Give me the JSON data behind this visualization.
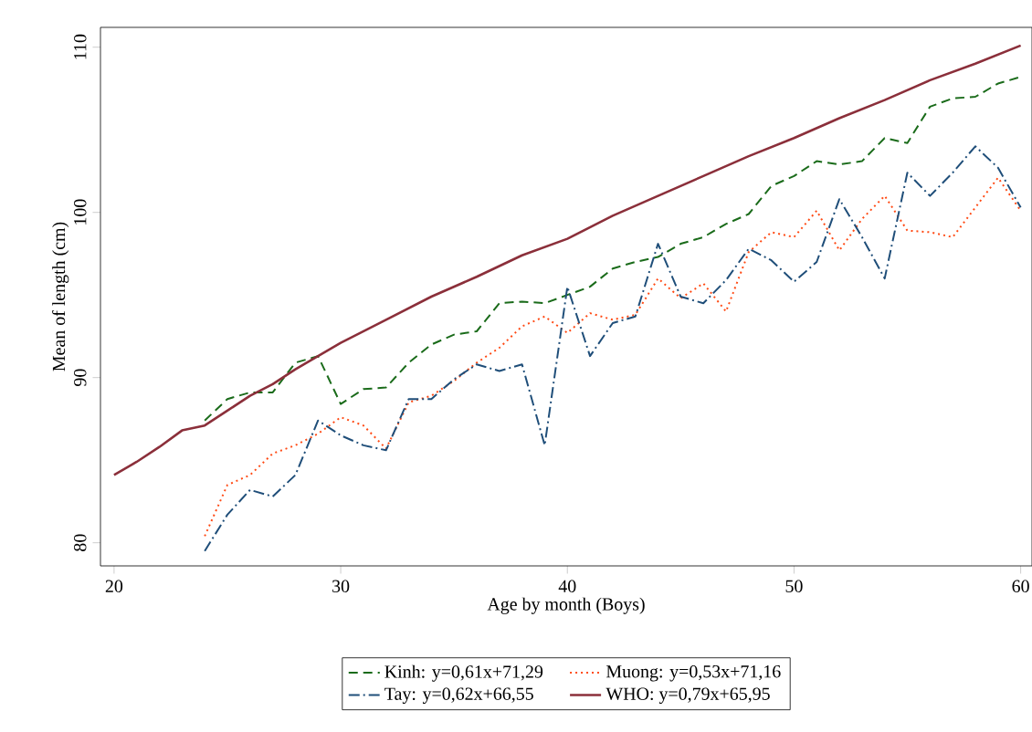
{
  "chart_data": {
    "type": "line",
    "xlabel": "Age by month (Boys)",
    "ylabel": "Mean of length (cm)",
    "xlim": [
      19.4,
      60.5
    ],
    "ylim": [
      78.6,
      111.2
    ],
    "xticks": [
      20,
      30,
      40,
      50,
      60
    ],
    "yticks": [
      80,
      90,
      100,
      110
    ],
    "grid": false,
    "legend": "bottom",
    "marker": "none",
    "series": [
      {
        "name": "Kinh: y=0,61x+71,29",
        "color": "#1a6b1a",
        "line_style": "dashed",
        "x": [
          24,
          25,
          26,
          27,
          28,
          29,
          30,
          31,
          32,
          33,
          34,
          35,
          36,
          37,
          38,
          39,
          40,
          41,
          42,
          43,
          44,
          45,
          46,
          47,
          48,
          49,
          50,
          51,
          52,
          53,
          54,
          55,
          56,
          57,
          58,
          59,
          60
        ],
        "values": [
          87.4,
          88.7,
          89.1,
          89.1,
          90.9,
          91.3,
          88.4,
          89.3,
          89.4,
          90.9,
          92.0,
          92.6,
          92.8,
          94.5,
          94.6,
          94.5,
          95.0,
          95.5,
          96.6,
          97.0,
          97.3,
          98.1,
          98.5,
          99.3,
          99.9,
          101.6,
          102.2,
          103.1,
          102.9,
          103.1,
          104.5,
          104.2,
          106.4,
          106.9,
          107.0,
          107.8,
          108.2
        ]
      },
      {
        "name": "Muong: y=0,53x+71,16",
        "color": "#ff4a14",
        "line_style": "dotted",
        "x": [
          24,
          25,
          26,
          27,
          28,
          29,
          30,
          31,
          32,
          33,
          34,
          35,
          36,
          37,
          38,
          39,
          40,
          41,
          42,
          43,
          44,
          45,
          46,
          47,
          48,
          49,
          50,
          51,
          52,
          53,
          54,
          55,
          56,
          57,
          58,
          59,
          60
        ],
        "values": [
          80.4,
          83.5,
          84.1,
          85.4,
          85.9,
          86.6,
          87.6,
          87.1,
          85.7,
          88.5,
          88.9,
          89.8,
          90.9,
          91.8,
          93.1,
          93.7,
          92.7,
          93.9,
          93.5,
          93.8,
          96.0,
          94.8,
          95.7,
          94.0,
          97.6,
          98.8,
          98.5,
          100.1,
          97.7,
          99.6,
          101.0,
          98.9,
          98.8,
          98.5,
          100.3,
          102.1,
          100.1
        ]
      },
      {
        "name": "Tay: y=0,62x+66,55",
        "color": "#1f4e79",
        "line_style": "dashdot",
        "x": [
          24,
          25,
          26,
          27,
          28,
          29,
          30,
          31,
          32,
          33,
          34,
          35,
          36,
          37,
          38,
          39,
          40,
          41,
          42,
          43,
          44,
          45,
          46,
          47,
          48,
          49,
          50,
          51,
          52,
          53,
          54,
          55,
          56,
          57,
          58,
          59,
          60
        ],
        "values": [
          79.5,
          81.7,
          83.2,
          82.8,
          84.1,
          87.4,
          86.5,
          85.9,
          85.6,
          88.7,
          88.7,
          89.9,
          90.8,
          90.4,
          90.8,
          85.9,
          95.5,
          91.3,
          93.3,
          93.7,
          98.1,
          94.9,
          94.5,
          95.9,
          97.8,
          97.1,
          95.8,
          97.0,
          100.8,
          98.5,
          96.0,
          102.4,
          101.0,
          102.4,
          104.0,
          102.7,
          100.3
        ]
      },
      {
        "name": "WHO: y=0,79x+65,95",
        "color": "#8b2f3a",
        "line_style": "solid",
        "x": [
          20,
          21,
          22,
          23,
          24,
          25,
          26,
          27,
          28,
          29,
          30,
          32,
          34,
          36,
          38,
          40,
          42,
          44,
          46,
          48,
          50,
          52,
          54,
          56,
          58,
          60
        ],
        "values": [
          84.1,
          84.9,
          85.8,
          86.8,
          87.1,
          88.0,
          88.9,
          89.6,
          90.5,
          91.3,
          92.1,
          93.5,
          94.9,
          96.1,
          97.4,
          98.4,
          99.8,
          101.0,
          102.2,
          103.4,
          104.5,
          105.7,
          106.8,
          108.0,
          109.0,
          110.1
        ]
      }
    ]
  }
}
